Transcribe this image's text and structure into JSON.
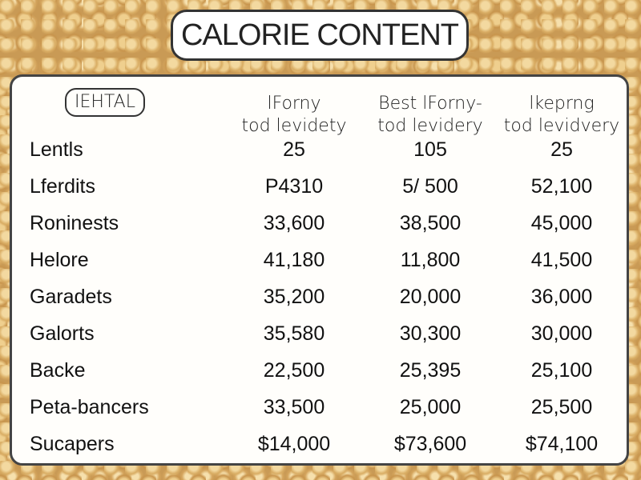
{
  "title": "CALORIE CONTENT",
  "table": {
    "header": [
      [
        "IEHTAL"
      ],
      [
        "lForny",
        "tod levidety"
      ],
      [
        "Best lForny-",
        "tod levidery"
      ],
      [
        "lkeprng",
        "tod levidvery"
      ]
    ],
    "rows": [
      [
        "Lentls",
        "25",
        "105",
        "25"
      ],
      [
        "Lferdits",
        "P4310",
        "5/ 500",
        "52,100"
      ],
      [
        "Roninests",
        "33,600",
        "38,500",
        "45,000"
      ],
      [
        "Helore",
        "41,180",
        "11,800",
        "41,500"
      ],
      [
        "Garadets",
        "35,200",
        "20,000",
        "36,000"
      ],
      [
        "Galorts",
        "35,580",
        "30,300",
        "30,000"
      ],
      [
        "Backe",
        "22,500",
        "25,395",
        "25,100"
      ],
      [
        "Peta-bancers",
        "33,500",
        "25,000",
        "25,500"
      ],
      [
        "Sucapers",
        "$14,000",
        "$73,600",
        "$74,100"
      ]
    ]
  }
}
